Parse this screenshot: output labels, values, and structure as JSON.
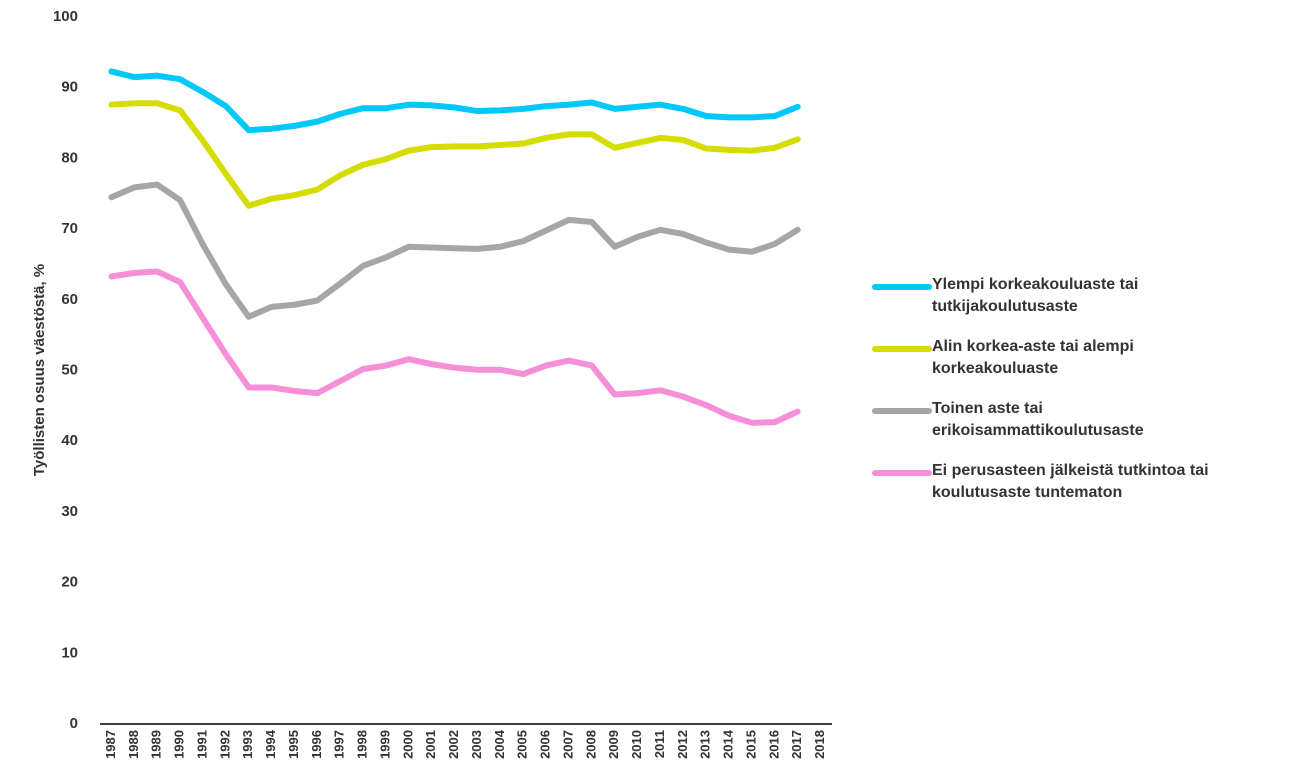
{
  "chart_data": {
    "type": "line",
    "y_label": "Työllisten osuus väestöstä, %",
    "categories": [
      "1987",
      "1988",
      "1989",
      "1990",
      "1991",
      "1992",
      "1993",
      "1994",
      "1995",
      "1996",
      "1997",
      "1998",
      "1999",
      "2000",
      "2001",
      "2002",
      "2003",
      "2004",
      "2005",
      "2006",
      "2007",
      "2008",
      "2009",
      "2010",
      "2011",
      "2012",
      "2013",
      "2014",
      "2015",
      "2016",
      "2017",
      "2018"
    ],
    "series": [
      {
        "name": "Ylempi korkeakouluaste tai tutkijakoulutusaste",
        "color": "#00c8f8",
        "values": [
          92.3,
          91.5,
          91.7,
          91.2,
          89.4,
          87.4,
          84.0,
          84.2,
          84.6,
          85.2,
          86.3,
          87.1,
          87.1,
          87.6,
          87.5,
          87.2,
          86.7,
          86.8,
          87.0,
          87.4,
          87.6,
          87.9,
          87.0,
          87.3,
          87.6,
          87.0,
          86.0,
          85.8,
          85.8,
          86.0,
          87.3,
          null
        ]
      },
      {
        "name": "Alin korkea-aste tai alempi korkeakouluaste",
        "color": "#d4dc00",
        "values": [
          87.6,
          87.8,
          87.8,
          86.8,
          82.5,
          77.8,
          73.3,
          74.3,
          74.8,
          75.6,
          77.6,
          79.1,
          79.9,
          81.1,
          81.6,
          81.7,
          81.7,
          81.9,
          82.1,
          82.9,
          83.4,
          83.4,
          81.5,
          82.2,
          82.9,
          82.6,
          81.4,
          81.2,
          81.1,
          81.5,
          82.7,
          null
        ]
      },
      {
        "name": "Toinen aste tai erikoisammattikoulutusaste",
        "color": "#a6a6a6",
        "values": [
          74.5,
          75.9,
          76.3,
          74.1,
          67.8,
          62.2,
          57.6,
          59.0,
          59.3,
          59.9,
          62.3,
          64.8,
          66.0,
          67.5,
          67.4,
          67.3,
          67.2,
          67.5,
          68.3,
          69.8,
          71.3,
          71.0,
          67.5,
          68.9,
          69.9,
          69.3,
          68.1,
          67.1,
          66.8,
          67.9,
          69.9,
          null
        ]
      },
      {
        "name": "Ei perusasteen jälkeistä tutkintoa tai koulutusaste tuntematon",
        "color": "#f78fd8",
        "values": [
          63.3,
          63.8,
          64.0,
          62.5,
          57.4,
          52.3,
          47.6,
          47.6,
          47.1,
          46.8,
          48.5,
          50.2,
          50.7,
          51.6,
          50.9,
          50.4,
          50.1,
          50.1,
          49.5,
          50.7,
          51.4,
          50.7,
          46.6,
          46.8,
          47.2,
          46.3,
          45.1,
          43.6,
          42.6,
          42.7,
          44.2,
          null
        ]
      }
    ],
    "ylim": [
      0,
      100
    ],
    "yticks": [
      0,
      10,
      20,
      30,
      40,
      50,
      60,
      70,
      80,
      90,
      100
    ],
    "grid": false,
    "legend": "right"
  }
}
